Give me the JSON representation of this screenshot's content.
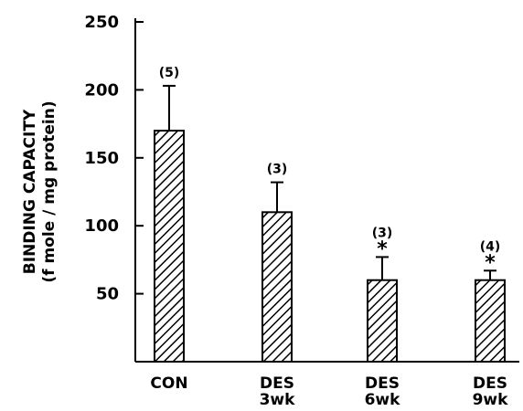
{
  "chart_data": {
    "type": "bar",
    "ylabel_lines": [
      "BINDING CAPACITY",
      "(f mole / mg protein)"
    ],
    "ylim": [
      0,
      250
    ],
    "yticks": [
      "50",
      "100",
      "150",
      "200",
      "250"
    ],
    "categories": [
      [
        "CON"
      ],
      [
        "DES",
        "3wk"
      ],
      [
        "DES",
        "6wk"
      ],
      [
        "DES",
        "9wk"
      ]
    ],
    "values": [
      170,
      110,
      60,
      60
    ],
    "error_upper": [
      203,
      132,
      77,
      67
    ],
    "n_labels": [
      "(5)",
      "(3)",
      "(3)",
      "(4)"
    ],
    "significance": [
      "",
      "",
      "*",
      "*"
    ],
    "bar_fill": "hatched",
    "colors": {
      "ink": "#000000",
      "background": "#ffffff"
    }
  }
}
